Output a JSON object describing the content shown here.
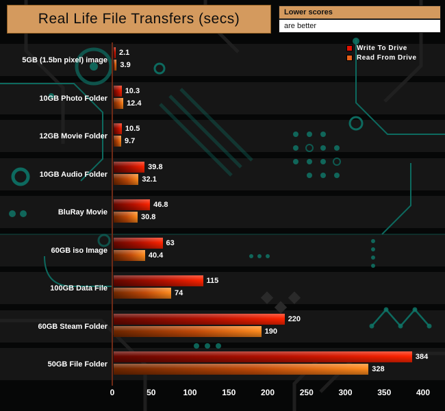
{
  "title": "Real Life File Transfers (secs)",
  "note": {
    "line1": "Lower scores",
    "line2": "are better"
  },
  "legend": {
    "write_label": "Write To Drive",
    "read_label": "Read From Drive"
  },
  "colors": {
    "accent_tan": "#d49a5e",
    "write_bar": "#e01200",
    "read_bar": "#e8611a",
    "circuit_teal": "#0d6a5f",
    "axis_line": "#6e2a16",
    "label_text": "#ffffff"
  },
  "chart_data": {
    "type": "bar",
    "orientation": "horizontal",
    "title": "Real Life File Transfers (secs)",
    "note": "Lower scores are better",
    "categories": [
      "5GB (1.5bn pixel) image",
      "10GB Photo Folder",
      "12GB Movie Folder",
      "10GB Audio Folder",
      "BluRay Movie",
      "60GB iso Image",
      "100GB Data File",
      "60GB Steam Folder",
      "50GB File Folder"
    ],
    "series": [
      {
        "name": "Write To Drive",
        "color": "#e01200",
        "values": [
          2.1,
          10.3,
          10.5,
          39.8,
          46.8,
          63,
          115,
          220,
          384
        ]
      },
      {
        "name": "Read From Drive",
        "color": "#e8611a",
        "values": [
          3.9,
          12.4,
          9.7,
          32.1,
          30.8,
          40.4,
          74,
          190,
          328
        ]
      }
    ],
    "xlim": [
      0,
      400
    ],
    "xticks": [
      0,
      50,
      100,
      150,
      200,
      250,
      300,
      350,
      400
    ],
    "value_labels_visible": true,
    "legend_position": "top-right",
    "grid": false
  }
}
